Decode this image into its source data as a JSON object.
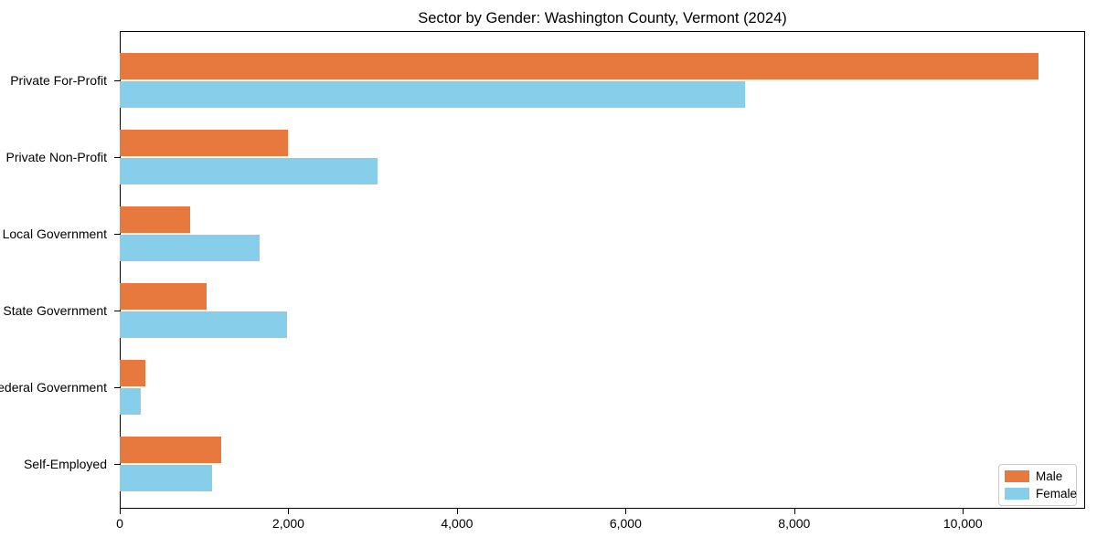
{
  "title": "Sector by Gender: Washington County, Vermont (2024)",
  "chart_data": {
    "type": "bar",
    "orientation": "horizontal",
    "title": "Sector by Gender: Washington County, Vermont (2024)",
    "categories": [
      "Private For-Profit",
      "Private Non-Profit",
      "Local Government",
      "State Government",
      "Federal Government",
      "Self-Employed"
    ],
    "series": [
      {
        "name": "Male",
        "color": "#E8793E",
        "values": [
          10900,
          2000,
          840,
          1030,
          300,
          1200
        ]
      },
      {
        "name": "Female",
        "color": "#87CEEB",
        "values": [
          7420,
          3060,
          1660,
          1980,
          250,
          1100
        ]
      }
    ],
    "xlabel": "",
    "ylabel": "",
    "xlim": [
      0,
      11450
    ],
    "xticks": [
      0,
      2000,
      4000,
      6000,
      8000,
      10000
    ],
    "xtick_labels": [
      "0",
      "2,000",
      "4,000",
      "6,000",
      "8,000",
      "10,000"
    ],
    "grid": false,
    "legend_position": "lower right"
  }
}
